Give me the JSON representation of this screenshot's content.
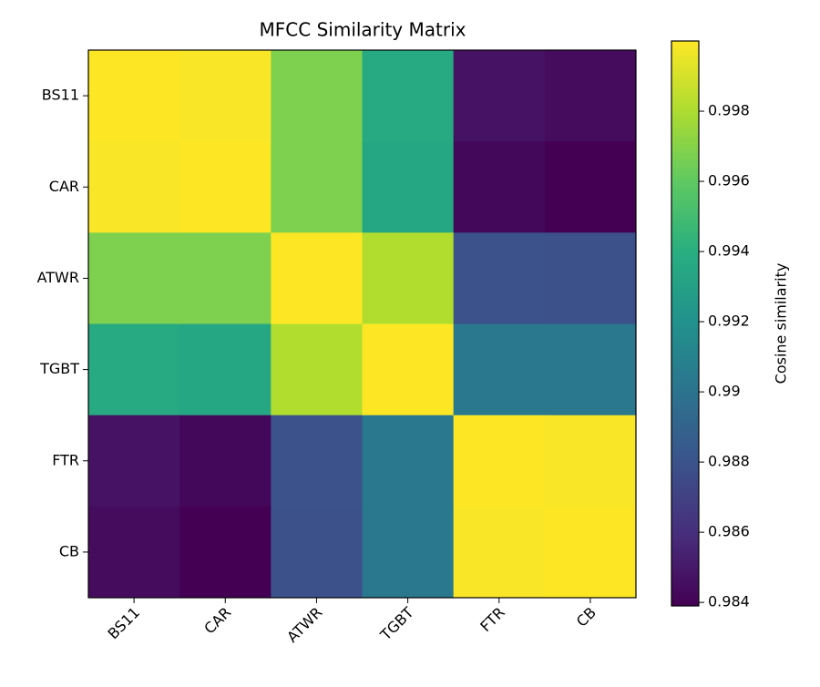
{
  "chart_data": {
    "type": "heatmap",
    "title": "MFCC Similarity Matrix",
    "categories": [
      "BS11",
      "CAR",
      "ATWR",
      "TGBT",
      "FTR",
      "CB"
    ],
    "values": [
      [
        1.0,
        0.9999,
        0.9968,
        0.9936,
        0.9847,
        0.9844
      ],
      [
        0.9999,
        1.0,
        0.9968,
        0.9935,
        0.9842,
        0.9839
      ],
      [
        0.9968,
        0.9968,
        1.0,
        0.9981,
        0.9879,
        0.9878
      ],
      [
        0.9936,
        0.9935,
        0.9981,
        1.0,
        0.9903,
        0.9903
      ],
      [
        0.9847,
        0.9842,
        0.9879,
        0.9903,
        1.0,
        0.9999
      ],
      [
        0.9844,
        0.9839,
        0.9878,
        0.9903,
        0.9999,
        1.0
      ]
    ],
    "colormap": "viridis",
    "clim": [
      0.9839,
      1.0
    ],
    "colorbar_label": "Cosine similarity",
    "colorbar_ticks": [
      0.984,
      0.986,
      0.988,
      0.99,
      0.992,
      0.994,
      0.996,
      0.998
    ]
  }
}
